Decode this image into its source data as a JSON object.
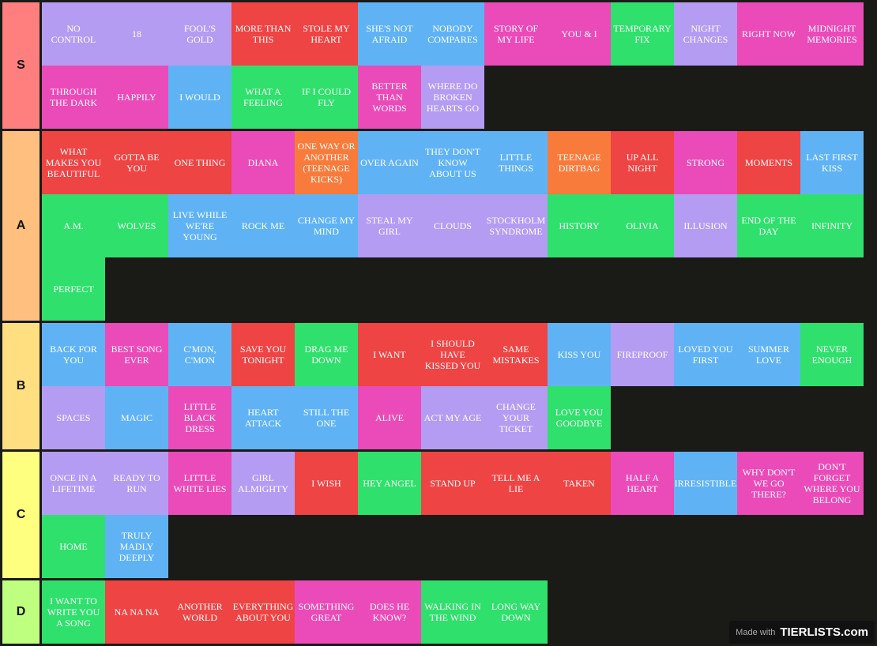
{
  "tiers": [
    {
      "label": "S",
      "color": "#ff7f7f",
      "items": [
        {
          "text": "NO CONTROL",
          "color": "#b49cf3"
        },
        {
          "text": "18",
          "color": "#b49cf3"
        },
        {
          "text": "FOOL'S GOLD",
          "color": "#b49cf3"
        },
        {
          "text": "MORE THAN THIS",
          "color": "#ee4444"
        },
        {
          "text": "STOLE MY HEART",
          "color": "#ee4444"
        },
        {
          "text": "SHE'S NOT AFRAID",
          "color": "#5fb3f5"
        },
        {
          "text": "NOBODY COMPARES",
          "color": "#5fb3f5"
        },
        {
          "text": "STORY OF MY LIFE",
          "color": "#ea4bb8"
        },
        {
          "text": "YOU & I",
          "color": "#ea4bb8"
        },
        {
          "text": "TEMPORARY FIX",
          "color": "#2fe06c"
        },
        {
          "text": "NIGHT CHANGES",
          "color": "#b49cf3"
        },
        {
          "text": "RIGHT NOW",
          "color": "#ea4bb8"
        },
        {
          "text": "MIDNIGHT MEMORIES",
          "color": "#ea4bb8"
        },
        {
          "text": "THROUGH THE DARK",
          "color": "#ea4bb8"
        },
        {
          "text": "HAPPILY",
          "color": "#ea4bb8"
        },
        {
          "text": "I WOULD",
          "color": "#5fb3f5"
        },
        {
          "text": "WHAT A FEELING",
          "color": "#2fe06c"
        },
        {
          "text": "IF I COULD FLY",
          "color": "#2fe06c"
        },
        {
          "text": "BETTER THAN WORDS",
          "color": "#ea4bb8"
        },
        {
          "text": "WHERE DO BROKEN HEARTS GO",
          "color": "#b49cf3"
        }
      ]
    },
    {
      "label": "A",
      "color": "#ffbf7f",
      "items": [
        {
          "text": "WHAT MAKES YOU BEAUTIFUL",
          "color": "#ee4444"
        },
        {
          "text": "GOTTA BE YOU",
          "color": "#ee4444"
        },
        {
          "text": "ONE THING",
          "color": "#ee4444"
        },
        {
          "text": "DIANA",
          "color": "#ea4bb8"
        },
        {
          "text": "ONE WAY OR ANOTHER (TEENAGE KICKS)",
          "color": "#f97b3b"
        },
        {
          "text": "OVER AGAIN",
          "color": "#5fb3f5"
        },
        {
          "text": "THEY DON'T KNOW ABOUT US",
          "color": "#5fb3f5"
        },
        {
          "text": "LITTLE THINGS",
          "color": "#5fb3f5"
        },
        {
          "text": "TEENAGE DIRTBAG",
          "color": "#f97b3b"
        },
        {
          "text": "UP ALL NIGHT",
          "color": "#ee4444"
        },
        {
          "text": "STRONG",
          "color": "#ea4bb8"
        },
        {
          "text": "MOMENTS",
          "color": "#ee4444"
        },
        {
          "text": "LAST FIRST KISS",
          "color": "#5fb3f5"
        },
        {
          "text": "A.M.",
          "color": "#2fe06c"
        },
        {
          "text": "WOLVES",
          "color": "#2fe06c"
        },
        {
          "text": "LIVE WHILE WE'RE YOUNG",
          "color": "#5fb3f5"
        },
        {
          "text": "ROCK ME",
          "color": "#5fb3f5"
        },
        {
          "text": "CHANGE MY MIND",
          "color": "#5fb3f5"
        },
        {
          "text": "STEAL MY GIRL",
          "color": "#b49cf3"
        },
        {
          "text": "CLOUDS",
          "color": "#b49cf3"
        },
        {
          "text": "STOCKHOLM SYNDROME",
          "color": "#b49cf3"
        },
        {
          "text": "HISTORY",
          "color": "#2fe06c"
        },
        {
          "text": "OLIVIA",
          "color": "#2fe06c"
        },
        {
          "text": "ILLUSION",
          "color": "#b49cf3"
        },
        {
          "text": "END OF THE DAY",
          "color": "#2fe06c"
        },
        {
          "text": "INFINITY",
          "color": "#2fe06c"
        },
        {
          "text": "PERFECT",
          "color": "#2fe06c"
        }
      ]
    },
    {
      "label": "B",
      "color": "#ffdf7f",
      "items": [
        {
          "text": "BACK FOR YOU",
          "color": "#5fb3f5"
        },
        {
          "text": "BEST SONG EVER",
          "color": "#ea4bb8"
        },
        {
          "text": "C'MON, C'MON",
          "color": "#5fb3f5"
        },
        {
          "text": "SAVE YOU TONIGHT",
          "color": "#ee4444"
        },
        {
          "text": "DRAG ME DOWN",
          "color": "#2fe06c"
        },
        {
          "text": "I WANT",
          "color": "#ee4444"
        },
        {
          "text": "I SHOULD HAVE KISSED YOU",
          "color": "#ee4444"
        },
        {
          "text": "SAME MISTAKES",
          "color": "#ee4444"
        },
        {
          "text": "KISS YOU",
          "color": "#5fb3f5"
        },
        {
          "text": "FIREPROOF",
          "color": "#b49cf3"
        },
        {
          "text": "LOVED YOU FIRST",
          "color": "#5fb3f5"
        },
        {
          "text": "SUMMER LOVE",
          "color": "#5fb3f5"
        },
        {
          "text": "NEVER ENOUGH",
          "color": "#2fe06c"
        },
        {
          "text": "SPACES",
          "color": "#b49cf3"
        },
        {
          "text": "MAGIC",
          "color": "#5fb3f5"
        },
        {
          "text": "LITTLE BLACK DRESS",
          "color": "#ea4bb8"
        },
        {
          "text": "HEART ATTACK",
          "color": "#5fb3f5"
        },
        {
          "text": "STILL THE ONE",
          "color": "#5fb3f5"
        },
        {
          "text": "ALIVE",
          "color": "#ea4bb8"
        },
        {
          "text": "ACT MY AGE",
          "color": "#b49cf3"
        },
        {
          "text": "CHANGE YOUR TICKET",
          "color": "#b49cf3"
        },
        {
          "text": "LOVE YOU GOODBYE",
          "color": "#2fe06c"
        }
      ]
    },
    {
      "label": "C",
      "color": "#ffff7f",
      "items": [
        {
          "text": "ONCE IN A LIFETIME",
          "color": "#b49cf3"
        },
        {
          "text": "READY TO RUN",
          "color": "#b49cf3"
        },
        {
          "text": "LITTLE WHITE LIES",
          "color": "#ea4bb8"
        },
        {
          "text": "GIRL ALMIGHTY",
          "color": "#b49cf3"
        },
        {
          "text": "I WISH",
          "color": "#ee4444"
        },
        {
          "text": "HEY ANGEL",
          "color": "#2fe06c"
        },
        {
          "text": "STAND UP",
          "color": "#ee4444"
        },
        {
          "text": "TELL ME A LIE",
          "color": "#ee4444"
        },
        {
          "text": "TAKEN",
          "color": "#ee4444"
        },
        {
          "text": "HALF A HEART",
          "color": "#ea4bb8"
        },
        {
          "text": "IRRESISTIBLE",
          "color": "#5fb3f5"
        },
        {
          "text": "WHY DON'T WE GO THERE?",
          "color": "#ea4bb8"
        },
        {
          "text": "DON'T FORGET WHERE YOU BELONG",
          "color": "#ea4bb8"
        },
        {
          "text": "HOME",
          "color": "#2fe06c"
        },
        {
          "text": "TRULY MADLY DEEPLY",
          "color": "#5fb3f5"
        }
      ]
    },
    {
      "label": "D",
      "color": "#bfff7f",
      "items": [
        {
          "text": "I WANT TO WRITE YOU A SONG",
          "color": "#2fe06c"
        },
        {
          "text": "NA NA NA",
          "color": "#ee4444"
        },
        {
          "text": "ANOTHER WORLD",
          "color": "#ee4444"
        },
        {
          "text": "EVERYTHING ABOUT YOU",
          "color": "#ee4444"
        },
        {
          "text": "SOMETHING GREAT",
          "color": "#ea4bb8"
        },
        {
          "text": "DOES HE KNOW?",
          "color": "#ea4bb8"
        },
        {
          "text": "WALKING IN THE WIND",
          "color": "#2fe06c"
        },
        {
          "text": "LONG WAY DOWN",
          "color": "#2fe06c"
        }
      ]
    }
  ],
  "watermark": {
    "prefix": "Made with",
    "brand": "TIERLISTS.com"
  }
}
